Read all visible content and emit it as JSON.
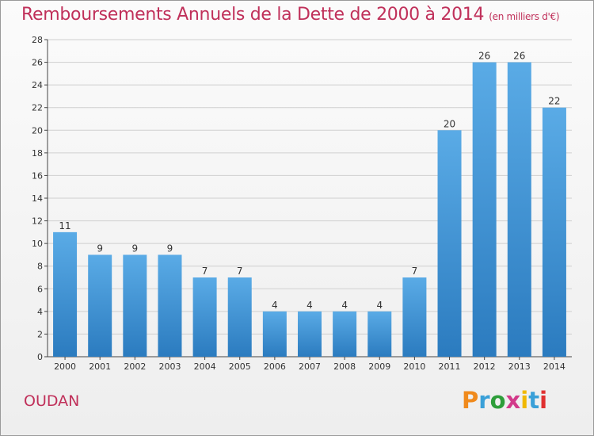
{
  "title": "Remboursements Annuels de la Dette de 2000 à 2014",
  "unit": "(en milliers d'€)",
  "commune": "OUDAN",
  "logo": {
    "text": "Proxiti",
    "colors": [
      "#f08a1c",
      "#3aa0d8",
      "#2e9e3a",
      "#d23a8a",
      "#f0b800",
      "#3aa0d8",
      "#e03030"
    ]
  },
  "colors": {
    "bar_top": "#5aabe6",
    "bar_bottom": "#2b7bbf",
    "title": "#c0305a"
  },
  "chart_data": {
    "type": "bar",
    "categories": [
      "2000",
      "2001",
      "2002",
      "2003",
      "2004",
      "2005",
      "2006",
      "2007",
      "2008",
      "2009",
      "2010",
      "2011",
      "2012",
      "2013",
      "2014"
    ],
    "values": [
      11,
      9,
      9,
      9,
      7,
      7,
      4,
      4,
      4,
      4,
      7,
      20,
      26,
      26,
      22
    ],
    "ylim": [
      0,
      28
    ],
    "yticks": [
      0,
      2,
      4,
      6,
      8,
      10,
      12,
      14,
      16,
      18,
      20,
      22,
      24,
      26,
      28
    ],
    "grid": true
  }
}
